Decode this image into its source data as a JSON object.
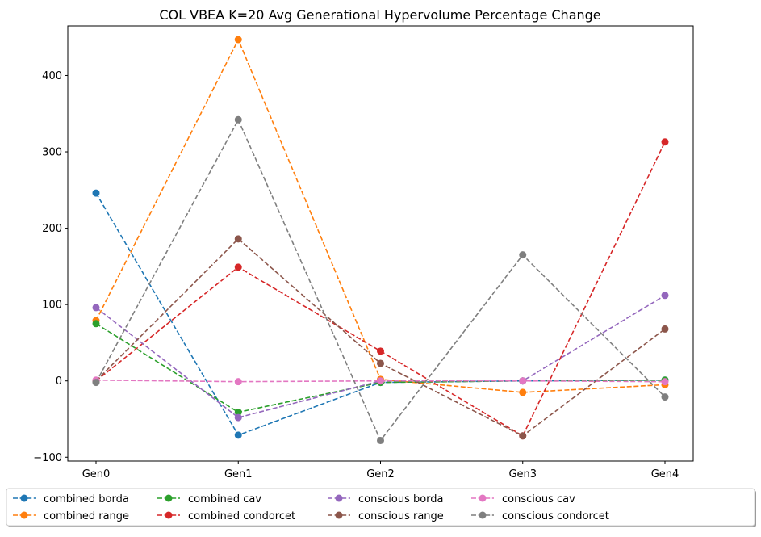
{
  "chart_data": {
    "type": "line",
    "title": "COL VBEA K=20 Avg Generational Hypervolume Percentage Change",
    "xlabel": "",
    "ylabel": "",
    "categories": [
      "Gen0",
      "Gen1",
      "Gen2",
      "Gen3",
      "Gen4"
    ],
    "ylim": [
      -105,
      465
    ],
    "yticks": [
      -100,
      0,
      100,
      200,
      300,
      400
    ],
    "yticklabels": [
      "−100",
      "0",
      "100",
      "200",
      "300",
      "400"
    ],
    "grid": false,
    "line_style": "dashed",
    "marker": "circle",
    "legend_position": "bottom (below plot), 5 columns",
    "series": [
      {
        "name": "combined borda",
        "color": "#1f77b4",
        "values": [
          246,
          -71,
          -2,
          0,
          1
        ]
      },
      {
        "name": "combined range",
        "color": "#ff7f0e",
        "values": [
          79,
          447,
          2,
          -15,
          -5
        ]
      },
      {
        "name": "combined cav",
        "color": "#2ca02c",
        "values": [
          75,
          -41,
          -2,
          0,
          1
        ]
      },
      {
        "name": "combined condorcet",
        "color": "#d62728",
        "values": [
          0,
          149,
          39,
          -72,
          313
        ]
      },
      {
        "name": "conscious borda",
        "color": "#9467bd",
        "values": [
          96,
          -48,
          0,
          0,
          112
        ]
      },
      {
        "name": "conscious range",
        "color": "#8c564b",
        "values": [
          0,
          186,
          23,
          -72,
          68
        ]
      },
      {
        "name": "conscious cav",
        "color": "#e377c2",
        "values": [
          1,
          -1,
          0,
          0,
          -1
        ]
      },
      {
        "name": "conscious condorcet",
        "color": "#7f7f7f",
        "values": [
          -2,
          342,
          -78,
          165,
          -21
        ]
      }
    ]
  }
}
